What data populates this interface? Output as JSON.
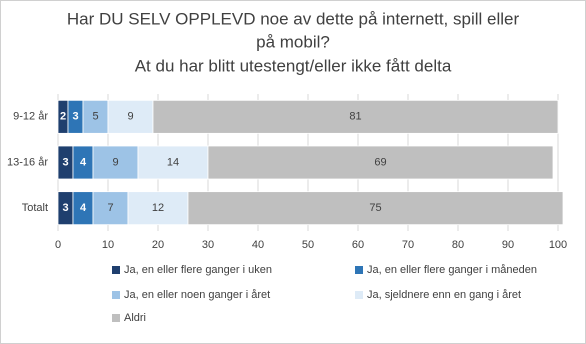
{
  "chart_data": {
    "type": "stacked-bar-horizontal",
    "title": [
      "Har DU SELV OPPLEVD noe av dette på internett, spill eller",
      "på mobil?",
      "At du har blitt utestengt/eller ikke fått delta"
    ],
    "categories": [
      "9-12 år",
      "13-16 år",
      "Totalt"
    ],
    "series": [
      {
        "name": "Ja, en eller flere ganger i uken",
        "color": "#1f3f6e",
        "values": [
          2,
          3,
          3
        ]
      },
      {
        "name": "Ja, en eller flere ganger i måneden",
        "color": "#2e75b6",
        "values": [
          3,
          4,
          4
        ]
      },
      {
        "name": "Ja, en eller noen ganger i året",
        "color": "#9dc3e6",
        "values": [
          5,
          9,
          7
        ]
      },
      {
        "name": "Ja, sjeldnere enn en gang i året",
        "color": "#deebf7",
        "values": [
          9,
          14,
          12
        ]
      },
      {
        "name": "Aldri",
        "color": "#bfbfbf",
        "values": [
          81,
          69,
          75
        ]
      }
    ],
    "xlim": [
      0,
      100
    ],
    "xticks": [
      0,
      10,
      20,
      30,
      40,
      50,
      60,
      70,
      80,
      90,
      100
    ],
    "grid": true
  }
}
